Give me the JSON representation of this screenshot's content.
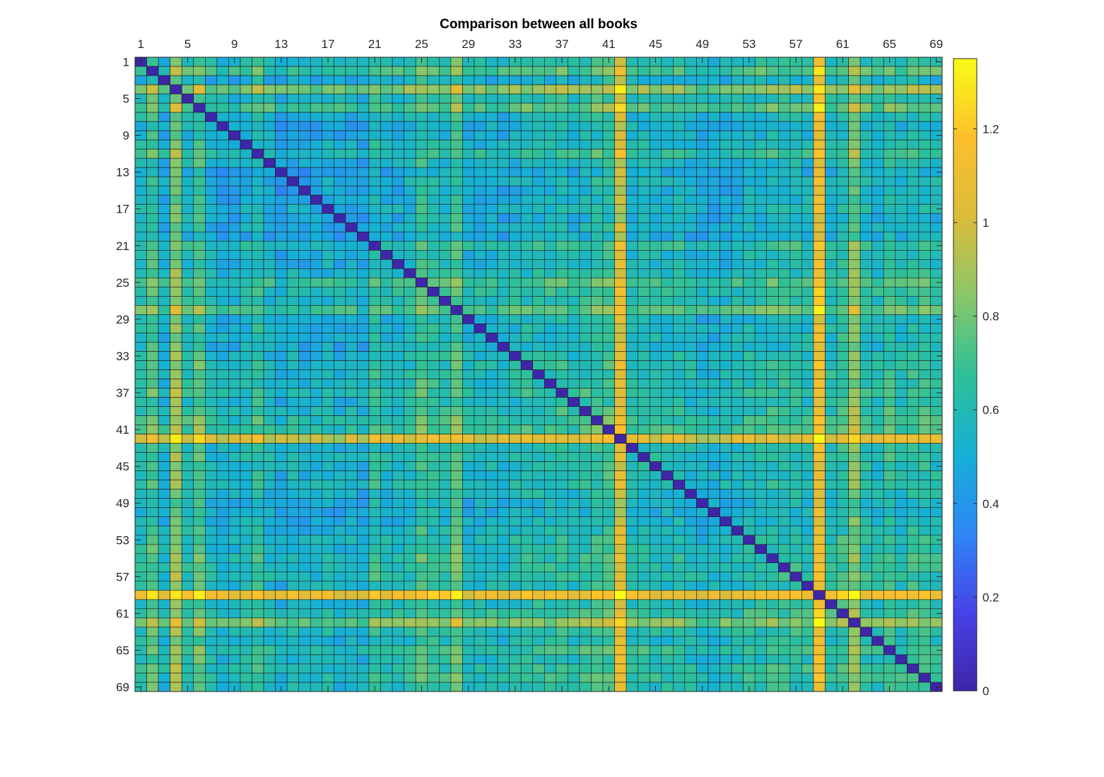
{
  "chart_data": {
    "type": "heatmap",
    "title": "Comparison between all books",
    "n": 69,
    "x_tick_labels": [
      "1",
      "5",
      "9",
      "13",
      "17",
      "21",
      "25",
      "29",
      "33",
      "37",
      "41",
      "45",
      "49",
      "53",
      "57",
      "61",
      "65",
      "69"
    ],
    "y_tick_labels": [
      "1",
      "5",
      "9",
      "13",
      "17",
      "21",
      "25",
      "29",
      "33",
      "37",
      "41",
      "45",
      "49",
      "53",
      "57",
      "61",
      "65",
      "69"
    ],
    "colorbar": {
      "range": [
        0,
        1.35
      ],
      "ticks": [
        0,
        0.2,
        0.4,
        0.6,
        0.8,
        1,
        1.2
      ],
      "tick_labels": [
        "0",
        "0.2",
        "0.4",
        "0.6",
        "0.8",
        "1",
        "1.2"
      ]
    },
    "colormap": [
      "#3e26a8",
      "#4743e8",
      "#2e87f7",
      "#15b1d5",
      "#2ec098",
      "#8ac76a",
      "#dbbc39",
      "#fdc02c",
      "#f9fb15"
    ],
    "diagonal_value": 0.0,
    "baseline_value": 0.62,
    "book_bias": [
      0.0,
      0.12,
      -0.08,
      0.24,
      0.0,
      0.14,
      -0.05,
      -0.08,
      -0.08,
      -0.04,
      0.04,
      -0.06,
      -0.12,
      -0.06,
      -0.1,
      -0.08,
      -0.06,
      -0.1,
      -0.08,
      -0.12,
      0.04,
      -0.04,
      -0.04,
      -0.02,
      0.1,
      0.04,
      0.0,
      0.14,
      -0.06,
      -0.04,
      -0.04,
      -0.06,
      -0.02,
      0.0,
      0.0,
      0.0,
      0.04,
      -0.02,
      0.02,
      0.06,
      0.08,
      0.42,
      -0.02,
      0.0,
      -0.02,
      -0.02,
      0.0,
      -0.04,
      -0.08,
      -0.08,
      -0.06,
      -0.04,
      0.0,
      0.0,
      0.02,
      0.02,
      0.02,
      0.0,
      0.5,
      0.0,
      0.06,
      0.22,
      0.02,
      -0.02,
      0.06,
      0.0,
      0.04,
      0.04,
      0.0
    ]
  }
}
